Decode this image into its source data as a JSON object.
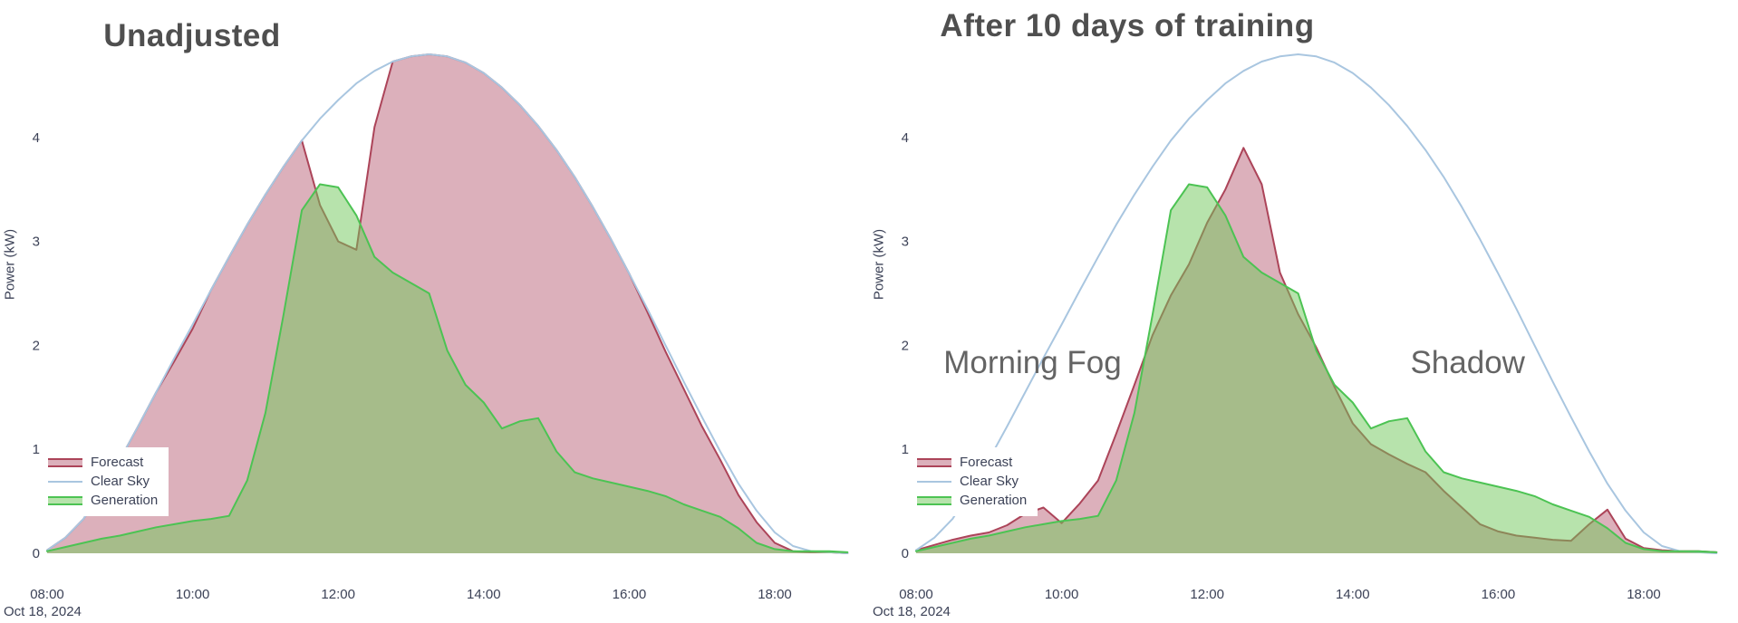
{
  "colors": {
    "background": "#ffffff",
    "text": "#3c4257",
    "title": "#4f4f4f",
    "annotation": "#646464",
    "forecast_fill": "rgba(185,97,119,0.5)",
    "forecast_line": "#ac4459",
    "clear_sky_line": "#a9c6e0",
    "generation_fill": "rgba(111,199,89,0.5)",
    "generation_line": "#4cc353"
  },
  "series_styles": {
    "Forecast": {
      "fill": "rgba(185,97,119,0.5)",
      "stroke": "#ac4459",
      "stroke_width": 2
    },
    "Clear Sky": {
      "fill": null,
      "stroke": "#a9c6e0",
      "stroke_width": 2
    },
    "Generation": {
      "fill": "rgba(111,199,89,0.5)",
      "stroke": "#4cc353",
      "stroke_width": 2
    }
  },
  "chart_data": [
    {
      "type": "area",
      "title": "Unadjusted",
      "ylabel": "Power (kW)",
      "x_date_label": "Oct 18, 2024",
      "x_unit": "time of day (hours)",
      "x_range": [
        7.95,
        19.3
      ],
      "ylim": [
        0,
        5.3
      ],
      "grid": false,
      "legend_position": "middle-left",
      "x_tick_hours": [
        8,
        10,
        12,
        14,
        16,
        18
      ],
      "x_tick_labels": [
        "08:00",
        "10:00",
        "12:00",
        "14:00",
        "16:00",
        "18:00"
      ],
      "y_ticks": [
        0,
        1,
        2,
        3,
        4
      ],
      "x_hours": [
        8,
        8.25,
        8.5,
        8.75,
        9,
        9.25,
        9.5,
        9.75,
        10,
        10.25,
        10.5,
        10.75,
        11,
        11.25,
        11.5,
        11.75,
        12,
        12.25,
        12.5,
        12.75,
        13,
        13.25,
        13.5,
        13.75,
        14,
        14.25,
        14.5,
        14.75,
        15,
        15.25,
        15.5,
        15.75,
        16,
        16.25,
        16.5,
        16.75,
        17,
        17.25,
        17.5,
        17.75,
        18,
        18.25,
        18.5,
        18.75,
        19
      ],
      "series": [
        {
          "name": "Forecast",
          "values": [
            0.03,
            0.15,
            0.33,
            0.6,
            0.9,
            1.22,
            1.55,
            1.85,
            2.16,
            2.53,
            2.85,
            3.16,
            3.45,
            3.72,
            3.97,
            3.35,
            3.0,
            2.92,
            4.1,
            4.73,
            4.78,
            4.8,
            4.78,
            4.72,
            4.62,
            4.48,
            4.31,
            4.11,
            3.88,
            3.62,
            3.33,
            3.02,
            2.69,
            2.32,
            1.94,
            1.58,
            1.22,
            0.9,
            0.56,
            0.3,
            0.1,
            0.02,
            0.01,
            0.01,
            0.0
          ]
        },
        {
          "name": "Clear Sky",
          "values": [
            0.03,
            0.15,
            0.33,
            0.6,
            0.9,
            1.22,
            1.55,
            1.88,
            2.2,
            2.53,
            2.85,
            3.16,
            3.45,
            3.72,
            3.97,
            4.18,
            4.36,
            4.52,
            4.64,
            4.73,
            4.78,
            4.8,
            4.78,
            4.72,
            4.62,
            4.48,
            4.31,
            4.11,
            3.88,
            3.62,
            3.33,
            3.02,
            2.69,
            2.35,
            2.0,
            1.65,
            1.31,
            0.98,
            0.67,
            0.41,
            0.2,
            0.07,
            0.02,
            0.01,
            0.0
          ]
        },
        {
          "name": "Generation",
          "values": [
            0.02,
            0.06,
            0.1,
            0.14,
            0.17,
            0.21,
            0.25,
            0.28,
            0.31,
            0.33,
            0.36,
            0.7,
            1.35,
            2.3,
            3.3,
            3.55,
            3.52,
            3.25,
            2.85,
            2.7,
            2.6,
            2.5,
            1.95,
            1.62,
            1.45,
            1.2,
            1.27,
            1.3,
            0.98,
            0.78,
            0.72,
            0.68,
            0.64,
            0.6,
            0.55,
            0.47,
            0.41,
            0.35,
            0.24,
            0.1,
            0.04,
            0.02,
            0.02,
            0.02,
            0.01
          ]
        }
      ],
      "annotations": []
    },
    {
      "type": "area",
      "title": "After 10 days of training",
      "ylabel": "Power (kW)",
      "x_date_label": "Oct 18, 2024",
      "x_unit": "time of day (hours)",
      "x_range": [
        7.95,
        19.3
      ],
      "ylim": [
        0,
        5.3
      ],
      "grid": false,
      "legend_position": "middle-left",
      "x_tick_hours": [
        8,
        10,
        12,
        14,
        16,
        18
      ],
      "x_tick_labels": [
        "08:00",
        "10:00",
        "12:00",
        "14:00",
        "16:00",
        "18:00"
      ],
      "y_ticks": [
        0,
        1,
        2,
        3,
        4
      ],
      "x_hours": [
        8,
        8.25,
        8.5,
        8.75,
        9,
        9.25,
        9.5,
        9.75,
        10,
        10.25,
        10.5,
        10.75,
        11,
        11.25,
        11.5,
        11.75,
        12,
        12.25,
        12.5,
        12.75,
        13,
        13.25,
        13.5,
        13.75,
        14,
        14.25,
        14.5,
        14.75,
        15,
        15.25,
        15.5,
        15.75,
        16,
        16.25,
        16.5,
        16.75,
        17,
        17.25,
        17.5,
        17.75,
        18,
        18.25,
        18.5,
        18.75,
        19
      ],
      "series": [
        {
          "name": "Forecast",
          "values": [
            0.03,
            0.08,
            0.13,
            0.17,
            0.2,
            0.27,
            0.38,
            0.44,
            0.29,
            0.48,
            0.7,
            1.15,
            1.62,
            2.1,
            2.48,
            2.78,
            3.18,
            3.5,
            3.9,
            3.55,
            2.7,
            2.3,
            1.98,
            1.6,
            1.25,
            1.05,
            0.95,
            0.86,
            0.78,
            0.6,
            0.44,
            0.28,
            0.21,
            0.17,
            0.15,
            0.13,
            0.12,
            0.28,
            0.42,
            0.14,
            0.05,
            0.03,
            0.02,
            0.02,
            0.01
          ]
        },
        {
          "name": "Clear Sky",
          "values": [
            0.03,
            0.15,
            0.33,
            0.6,
            0.9,
            1.22,
            1.55,
            1.88,
            2.2,
            2.53,
            2.85,
            3.16,
            3.45,
            3.72,
            3.97,
            4.18,
            4.36,
            4.52,
            4.64,
            4.73,
            4.78,
            4.8,
            4.78,
            4.72,
            4.62,
            4.48,
            4.31,
            4.11,
            3.88,
            3.62,
            3.33,
            3.02,
            2.69,
            2.35,
            2.0,
            1.65,
            1.31,
            0.98,
            0.67,
            0.41,
            0.2,
            0.07,
            0.02,
            0.01,
            0.0
          ]
        },
        {
          "name": "Generation",
          "values": [
            0.02,
            0.06,
            0.1,
            0.14,
            0.17,
            0.21,
            0.25,
            0.28,
            0.31,
            0.33,
            0.36,
            0.7,
            1.35,
            2.3,
            3.3,
            3.55,
            3.52,
            3.25,
            2.85,
            2.7,
            2.6,
            2.5,
            1.95,
            1.62,
            1.45,
            1.2,
            1.27,
            1.3,
            0.98,
            0.78,
            0.72,
            0.68,
            0.64,
            0.6,
            0.55,
            0.47,
            0.41,
            0.35,
            0.24,
            0.1,
            0.04,
            0.02,
            0.02,
            0.02,
            0.01
          ]
        }
      ],
      "annotations": [
        {
          "text": "Morning Fog",
          "x": 9.6,
          "y": 1.84
        },
        {
          "text": "Shadow",
          "x": 15.58,
          "y": 1.84
        }
      ]
    }
  ]
}
